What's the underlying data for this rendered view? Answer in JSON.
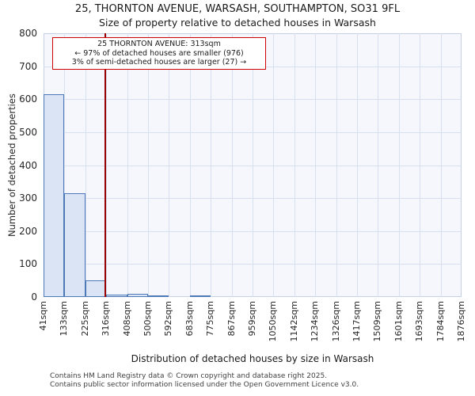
{
  "title": "25, THORNTON AVENUE, WARSASH, SOUTHAMPTON, SO31 9FL",
  "subtitle": "Size of property relative to detached houses in Warsash",
  "annotation": {
    "line1": "25 THORNTON AVENUE: 313sqm",
    "line2": "← 97% of detached houses are smaller (976)",
    "line3": "3% of semi-detached houses are larger (27) →"
  },
  "footer": {
    "line1": "Contains HM Land Registry data © Crown copyright and database right 2025.",
    "line2": "Contains public sector information licensed under the Open Government Licence v3.0."
  },
  "chart_data": {
    "type": "bar",
    "title": "25, THORNTON AVENUE, WARSASH, SOUTHAMPTON, SO31 9FL — Size of property relative to detached houses in Warsash",
    "xlabel": "Distribution of detached houses by size in Warsash",
    "ylabel": "Number of detached properties",
    "ylim": [
      0,
      800
    ],
    "yticks": [
      0,
      100,
      200,
      300,
      400,
      500,
      600,
      700,
      800
    ],
    "grid": true,
    "legend": "none",
    "bin_edges_sqm": [
      41,
      133,
      225,
      316,
      408,
      500,
      592,
      683,
      775,
      867,
      959,
      1050,
      1142,
      1234,
      1326,
      1417,
      1509,
      1601,
      1693,
      1784,
      1876
    ],
    "tick_labels": [
      "41sqm",
      "133sqm",
      "225sqm",
      "316sqm",
      "408sqm",
      "500sqm",
      "592sqm",
      "683sqm",
      "775sqm",
      "867sqm",
      "959sqm",
      "1050sqm",
      "1142sqm",
      "1234sqm",
      "1326sqm",
      "1417sqm",
      "1509sqm",
      "1601sqm",
      "1693sqm",
      "1784sqm",
      "1876sqm"
    ],
    "values": [
      615,
      315,
      50,
      8,
      10,
      2,
      0,
      3,
      0,
      0,
      0,
      0,
      0,
      0,
      0,
      0,
      0,
      0,
      0,
      0
    ],
    "marker_value_sqm": 313,
    "colors": {
      "bar_fill": "#dbe4f5",
      "bar_edge": "#4d79b8",
      "marker": "#990000",
      "annotation_border": "#cc0000",
      "gridline": "#d8e0f0"
    }
  }
}
